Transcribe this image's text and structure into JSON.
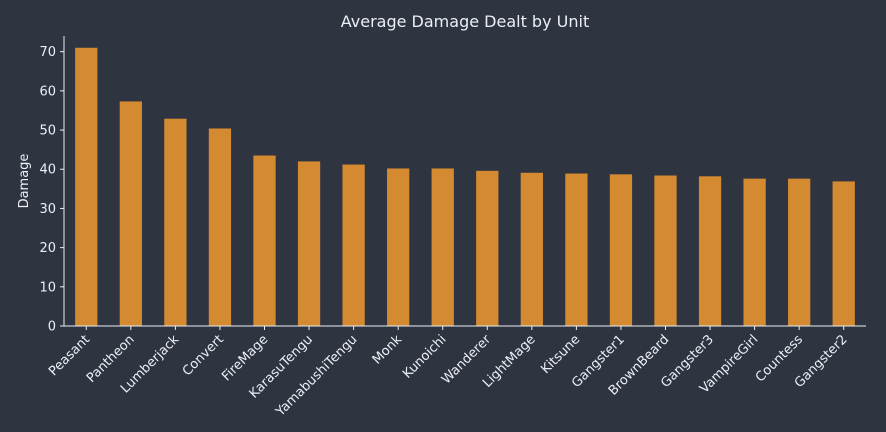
{
  "colors": {
    "background": "#2e3440",
    "bar": "#d48a31",
    "text": "#eceff4",
    "axis": "#eceff4"
  },
  "chart_data": {
    "type": "bar",
    "title": "Average Damage Dealt by Unit",
    "xlabel": "",
    "ylabel": "Damage",
    "ylim": [
      0,
      74
    ],
    "yticks": [
      0,
      10,
      20,
      30,
      40,
      50,
      60,
      70
    ],
    "grid": false,
    "legend": "none",
    "categories": [
      "Peasant",
      "Pantheon",
      "Lumberjack",
      "Convert",
      "FireMage",
      "KarasuTengu",
      "YamabushiTengu",
      "Monk",
      "Kunoichi",
      "Wanderer",
      "LightMage",
      "Kitsune",
      "Gangster1",
      "BrownBeard",
      "Gangster3",
      "VampireGirl",
      "Countess",
      "Gangster2"
    ],
    "values": [
      71,
      57.3,
      52.9,
      50.4,
      43.5,
      42,
      41.2,
      40.2,
      40.2,
      39.6,
      39.1,
      38.9,
      38.7,
      38.4,
      38.2,
      37.6,
      37.6,
      36.9
    ]
  }
}
